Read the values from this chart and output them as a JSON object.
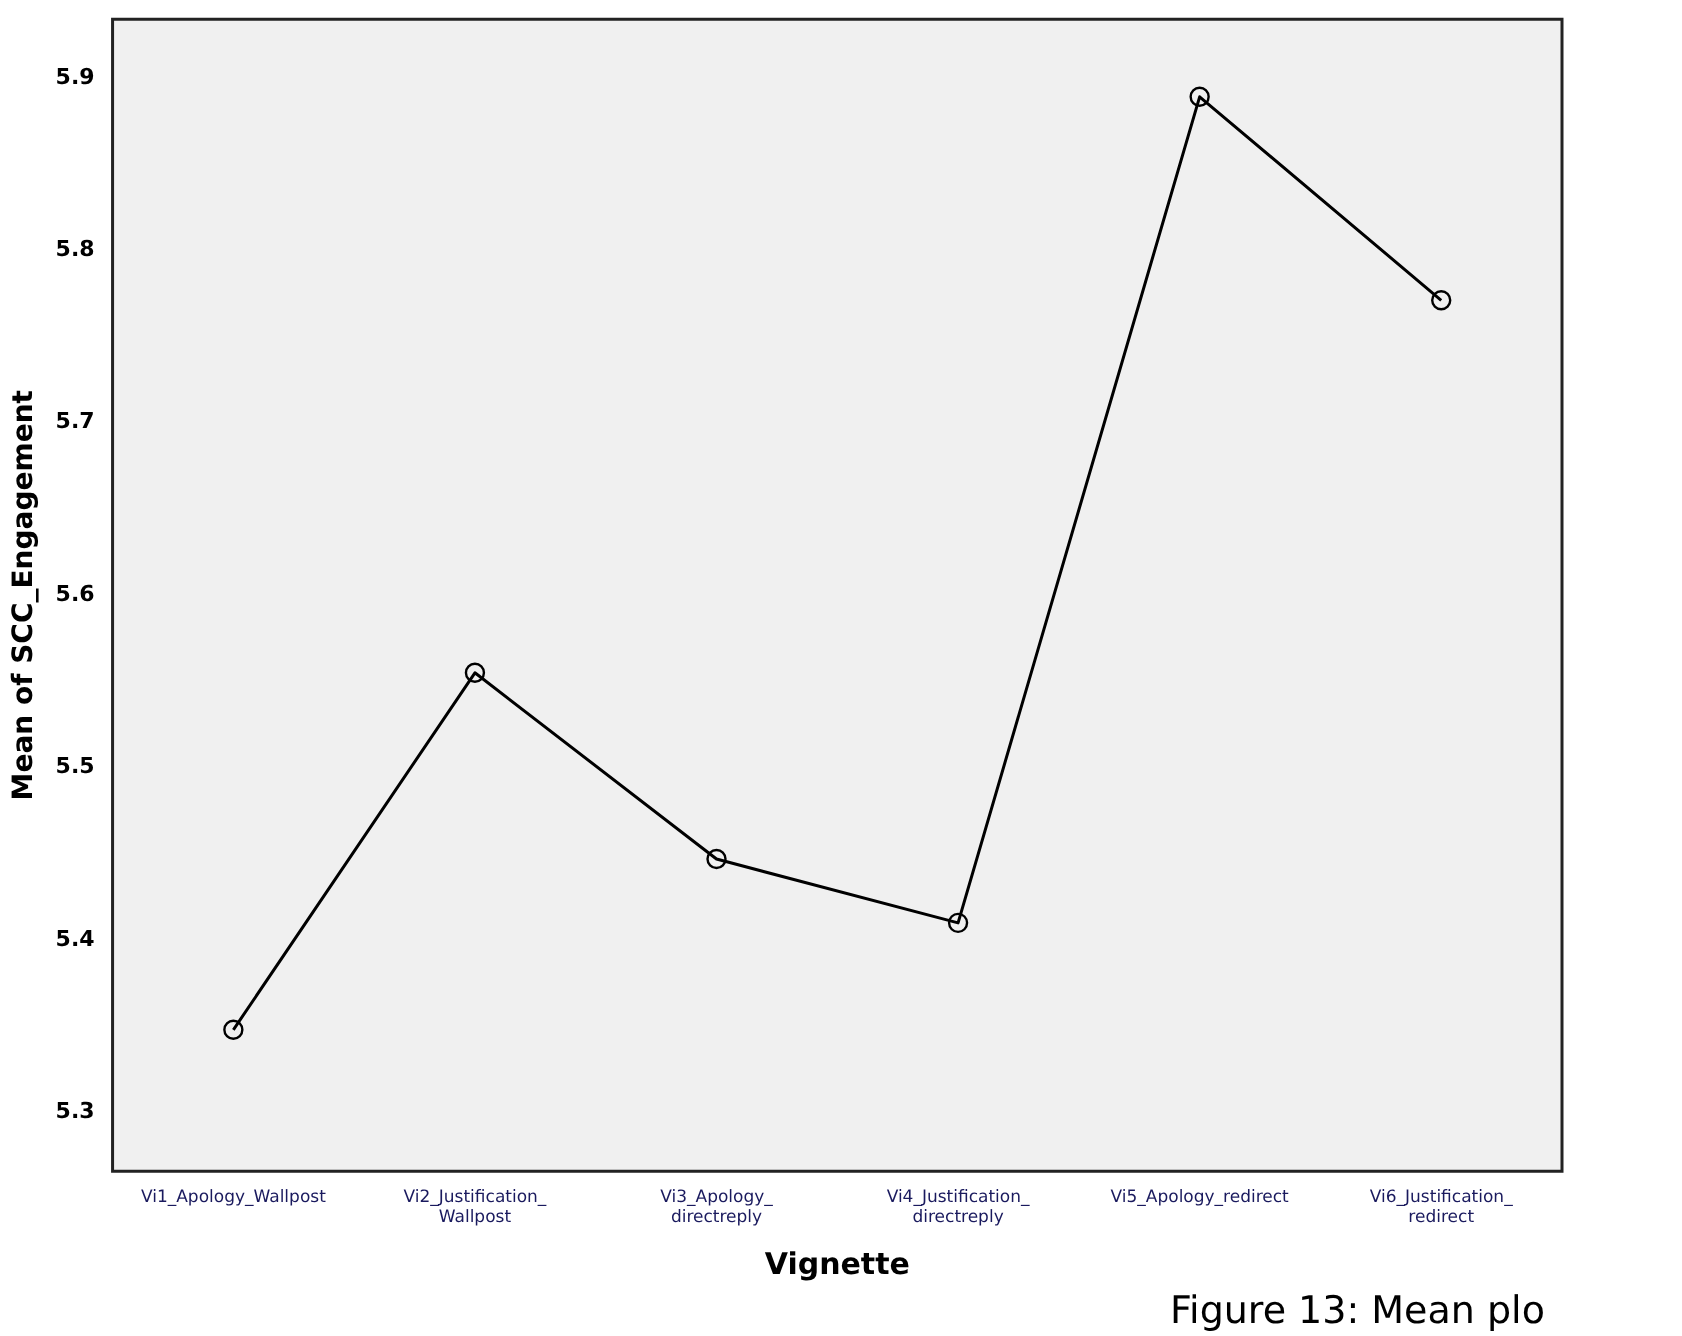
{
  "chart_data": {
    "type": "line",
    "xlabel": "Vignette",
    "ylabel": "Mean of SCC_Engagement",
    "categories": [
      "Vi1_Apology_Wallpost",
      "Vi2_Justification_Wallpost",
      "Vi3_Apology_directreply",
      "Vi4_Justification_directreply",
      "Vi5_Apology_redirect",
      "Vi6_Justification_redirect"
    ],
    "series": [
      {
        "color": "#000000",
        "values": [
          5.348,
          5.555,
          5.447,
          5.41,
          5.889,
          5.771
        ]
      }
    ],
    "ylim": [
      5.266,
      5.934
    ],
    "yticks": [
      5.3,
      5.4,
      5.5,
      5.6,
      5.7,
      5.8,
      5.9
    ],
    "marker": "circle",
    "line_style": "solid",
    "grid": false,
    "legend": false,
    "annotations": [
      "Figure 13: Mean plo"
    ]
  }
}
